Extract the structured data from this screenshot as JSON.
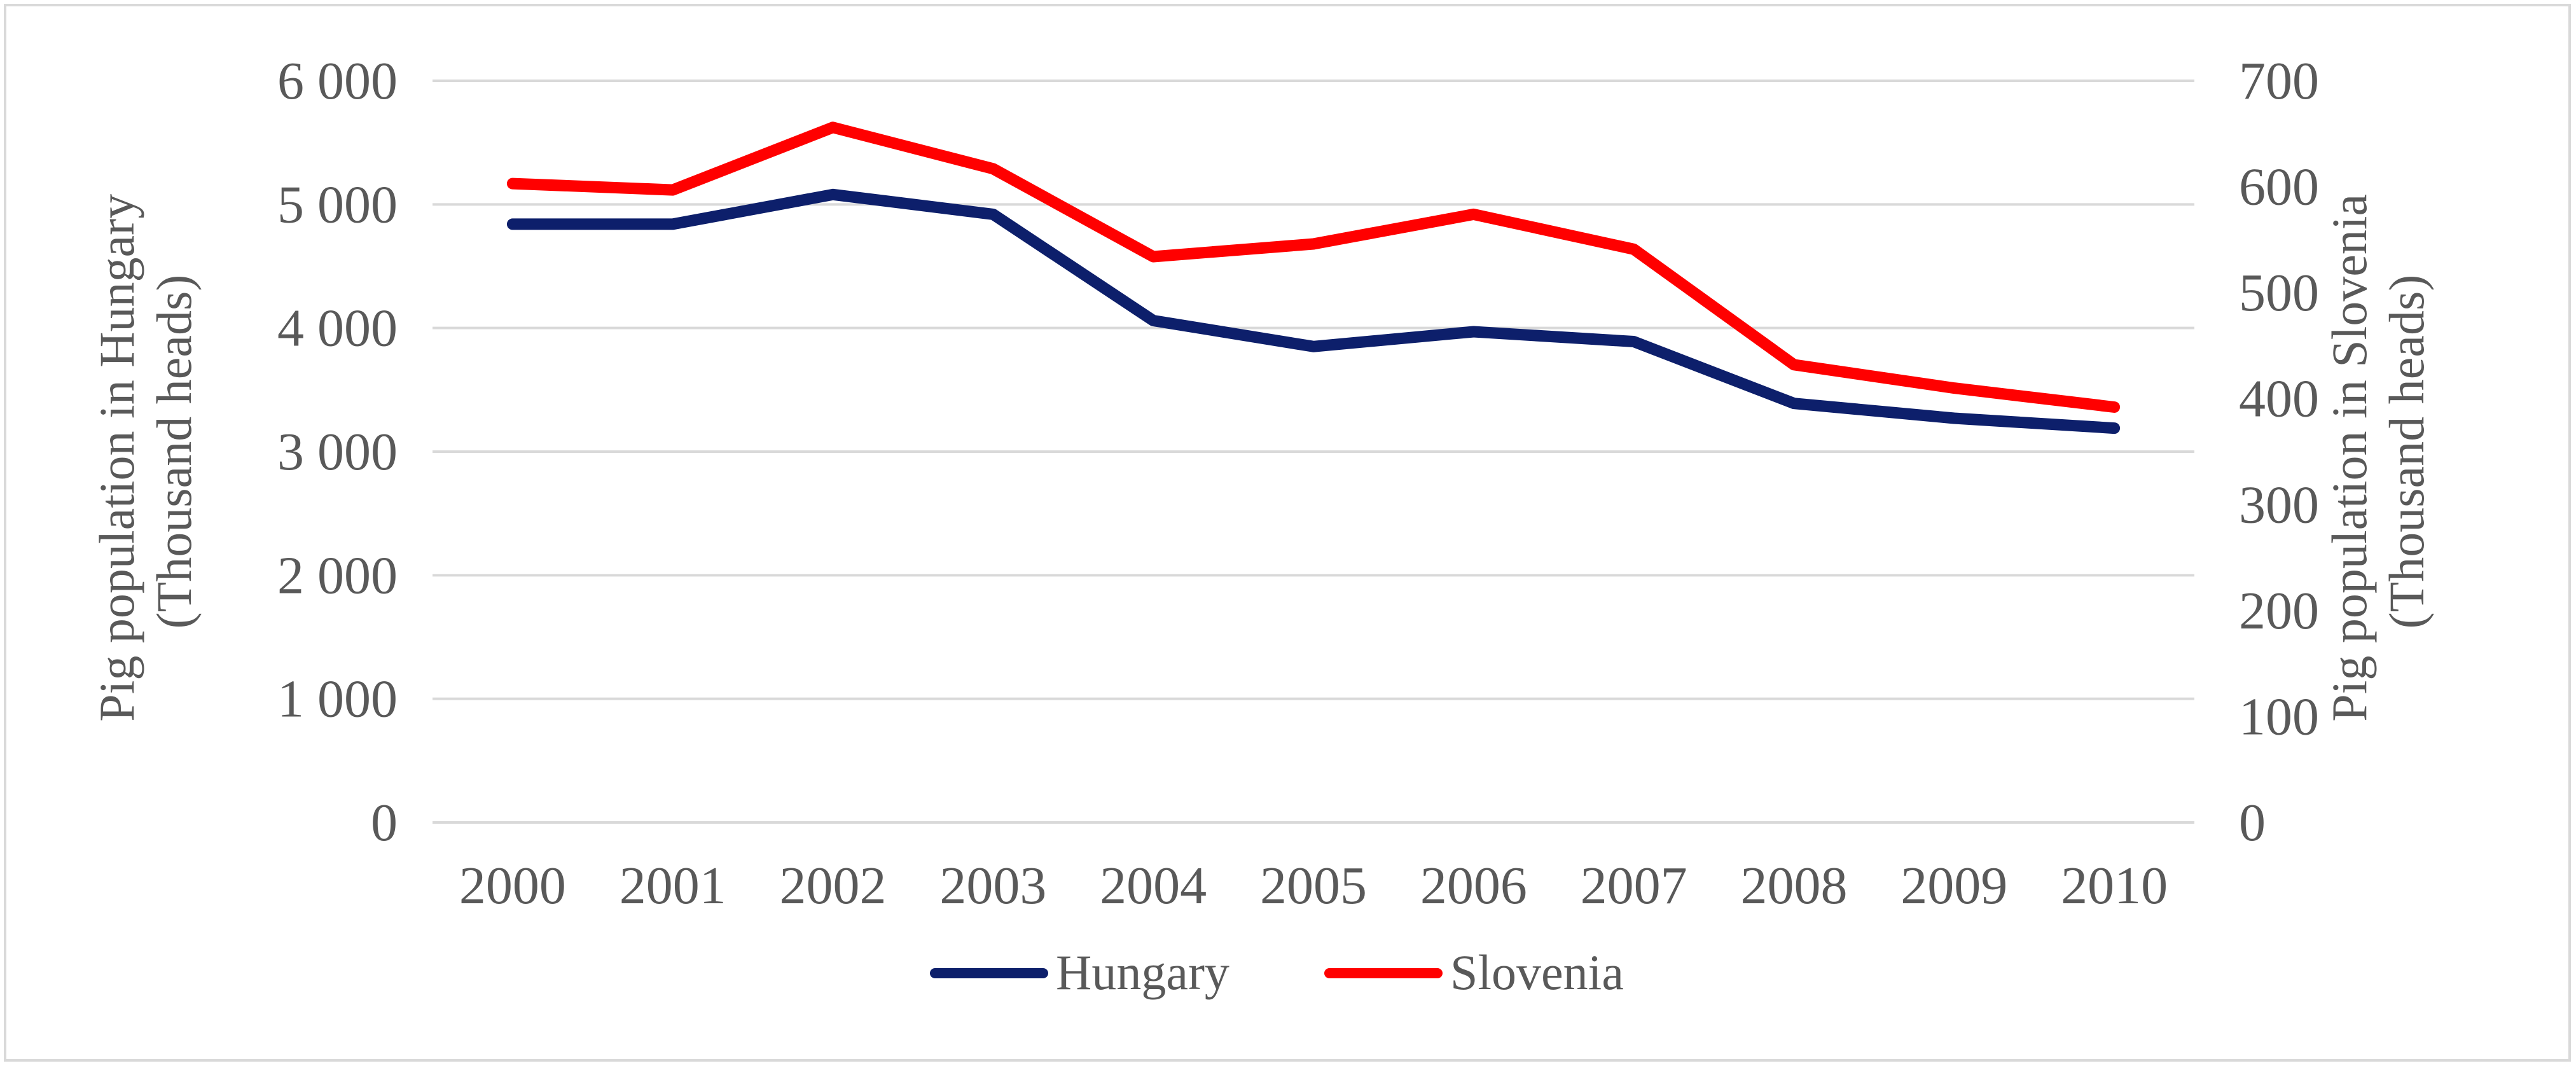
{
  "chart_data": {
    "type": "line",
    "title": "",
    "categories": [
      "2000",
      "2001",
      "2002",
      "2003",
      "2004",
      "2005",
      "2006",
      "2007",
      "2008",
      "2009",
      "2010"
    ],
    "series": [
      {
        "name": "Hungary",
        "axis": "left",
        "color": "#0d1f6b",
        "values": [
          4840,
          4840,
          5080,
          4920,
          4060,
          3850,
          3970,
          3890,
          3390,
          3270,
          3190
        ]
      },
      {
        "name": "Slovenia",
        "axis": "right",
        "color": "#ff0000",
        "values": [
          603,
          597,
          656,
          617,
          534,
          546,
          574,
          541,
          432,
          410,
          392
        ]
      }
    ],
    "y_left": {
      "label_line1": "Pig population in Hungary",
      "label_line2": "(Thousand heads)",
      "ylim": [
        0,
        6000
      ],
      "ticks": [
        0,
        1000,
        2000,
        3000,
        4000,
        5000,
        6000
      ],
      "tick_labels": [
        "0",
        "1 000",
        "2 000",
        "3 000",
        "4 000",
        "5 000",
        "6 000"
      ]
    },
    "y_right": {
      "label_line1": "Pig population in Slovenia",
      "label_line2": "(Thousand heads)",
      "ylim": [
        0,
        700
      ],
      "ticks": [
        0,
        100,
        200,
        300,
        400,
        500,
        600,
        700
      ],
      "tick_labels": [
        "0",
        "100",
        "200",
        "300",
        "400",
        "500",
        "600",
        "700"
      ]
    },
    "grid": true,
    "legend": "bottom-center"
  },
  "gridline_color": "#d9d9d9"
}
